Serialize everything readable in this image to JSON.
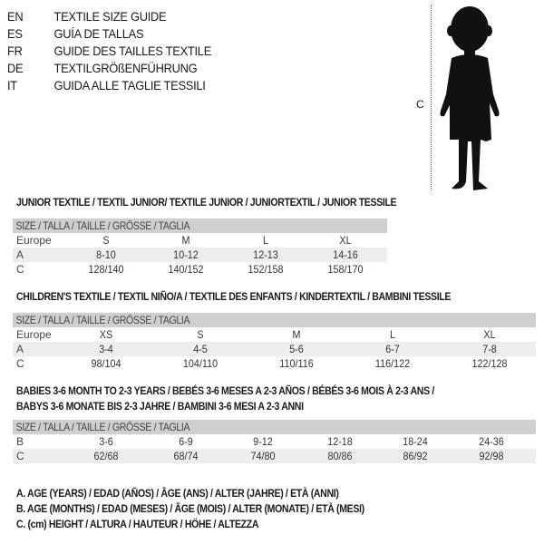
{
  "languages": [
    {
      "code": "EN",
      "text": "TEXTILE SIZE GUIDE"
    },
    {
      "code": "ES",
      "text": "GUÍA DE TALLAS"
    },
    {
      "code": "FR",
      "text": "GUIDE DES TAILLES TEXTILE"
    },
    {
      "code": "DE",
      "text": "TEXTILGRÖßENFÜHRUNG"
    },
    {
      "code": "IT",
      "text": "GUIDA ALLE TAGLIE TESSILI"
    }
  ],
  "figure": {
    "label": "C",
    "icon": "child-silhouette-icon"
  },
  "size_header": "SIZE / TALLA / TAILLE / GRÖSSE / TAGLIA",
  "junior": {
    "title": "JUNIOR TEXTILE / TEXTIL JUNIOR/ TEXTILE JUNIOR / JUNIORTEXTIL / JUNIOR TESSILE",
    "rows": [
      {
        "label": "Europe",
        "values": [
          "S",
          "M",
          "L",
          "XL"
        ]
      },
      {
        "label": "A",
        "values": [
          "8-10",
          "10-12",
          "12-13",
          "14-16"
        ]
      },
      {
        "label": "C",
        "values": [
          "128/140",
          "140/152",
          "152/158",
          "158/170"
        ]
      }
    ]
  },
  "children": {
    "title": "CHILDREN'S TEXTILE / TEXTIL NIÑO/A / TEXTILE DES ENFANTS / KINDERTEXTIL / BAMBINI TESSILE",
    "rows": [
      {
        "label": "Europe",
        "values": [
          "XS",
          "S",
          "M",
          "L",
          "XL"
        ]
      },
      {
        "label": "A",
        "values": [
          "3-4",
          "4-5",
          "5-6",
          "6-7",
          "7-8"
        ]
      },
      {
        "label": "C",
        "values": [
          "98/104",
          "104/110",
          "110/116",
          "116/122",
          "122/128"
        ]
      }
    ]
  },
  "babies": {
    "title_line1": "BABIES 3-6 MONTH TO 2-3 YEARS / BEBÉS 3-6 MESES A 2-3 AÑOS / BÉBÉS 3-6 MOIS À 2-3 ANS /",
    "title_line2": "BABYS 3-6 MONATE BIS 2-3 JAHRE / BAMBINI 3-6 MESI A 2-3 ANNI",
    "rows": [
      {
        "label": "B",
        "values": [
          "3-6",
          "6-9",
          "9-12",
          "12-18",
          "18-24",
          "24-36"
        ]
      },
      {
        "label": "C",
        "values": [
          "62/68",
          "68/74",
          "74/80",
          "80/86",
          "86/92",
          "92/98"
        ]
      }
    ]
  },
  "legend": [
    "A. AGE (YEARS) / EDAD (AÑOS) / ÂGE (ANS) / ALTER (JAHRE) / ETÀ (ANNI)",
    "B. AGE (MONTHS) / EDAD (MESES) / ÂGE (MOIS) / ALTER (MONATE) / ETÀ (MESI)",
    "C. (cm) HEIGHT / ALTURA / HAUTEUR / HÖHE / ALTEZZA"
  ]
}
